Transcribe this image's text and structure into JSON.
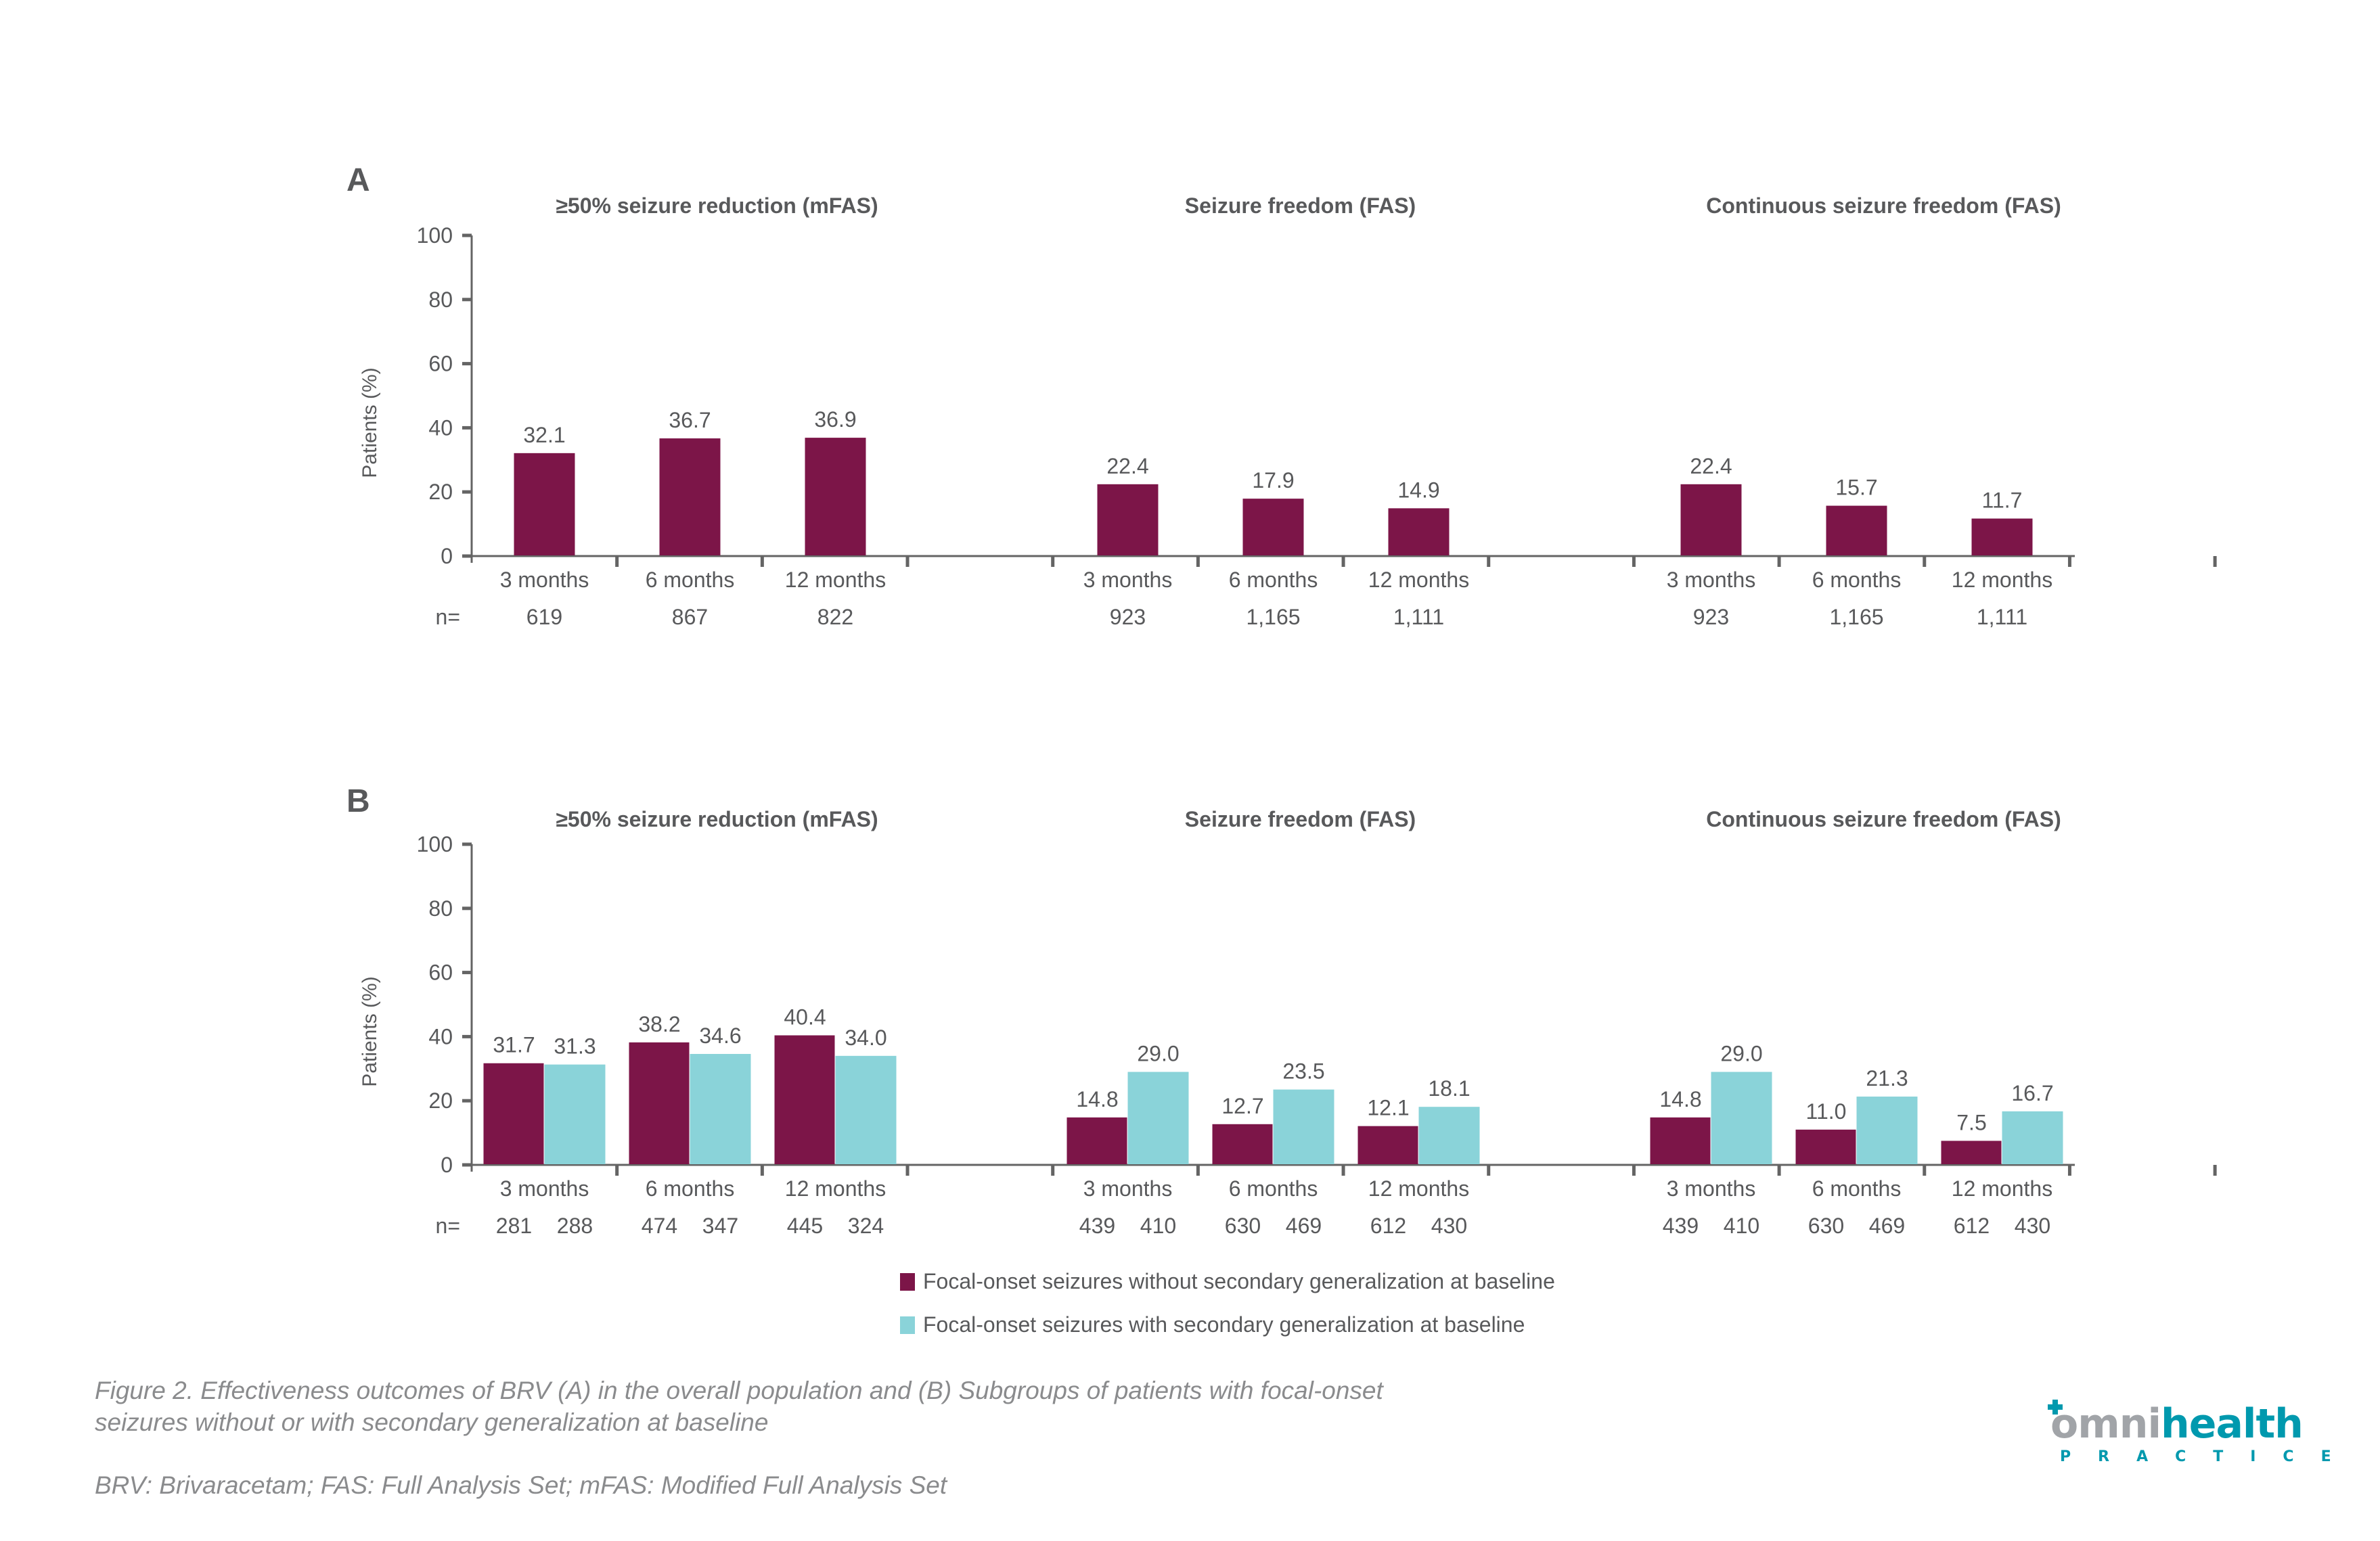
{
  "colors": {
    "without_secondary": "#7c1548",
    "with_secondary": "#8ad3d9",
    "axis": "#646464",
    "text": "#58595b",
    "caption": "#8a8b8d",
    "logo_gray": "#a1a4a8",
    "logo_teal": "#0099ae"
  },
  "chart_data": [
    {
      "panel": "A",
      "type": "bar",
      "ylabel": "Patients (%)",
      "ylim": [
        0,
        100
      ],
      "yticks": [
        0,
        20,
        40,
        60,
        80,
        100
      ],
      "n_label": "n=",
      "grid": false,
      "groups": [
        {
          "title": "≥50% seizure reduction (mFAS)",
          "categories": [
            "3 months",
            "6 months",
            "12 months"
          ],
          "series": [
            {
              "name": "Overall population",
              "values": [
                32.1,
                36.7,
                36.9
              ],
              "labels": [
                "32.1",
                "36.7",
                "36.9"
              ],
              "n": [
                "619",
                "867",
                "822"
              ]
            }
          ]
        },
        {
          "title": "Seizure freedom (FAS)",
          "categories": [
            "3 months",
            "6 months",
            "12 months"
          ],
          "series": [
            {
              "name": "Overall population",
              "values": [
                22.4,
                17.9,
                14.9
              ],
              "labels": [
                "22.4",
                "17.9",
                "14.9"
              ],
              "n": [
                "923",
                "1,165",
                "1,111"
              ]
            }
          ]
        },
        {
          "title": "Continuous seizure freedom (FAS)",
          "categories": [
            "3 months",
            "6 months",
            "12 months"
          ],
          "series": [
            {
              "name": "Overall population",
              "values": [
                22.4,
                15.7,
                11.7
              ],
              "labels": [
                "22.4",
                "15.7",
                "11.7"
              ],
              "n": [
                "923",
                "1,165",
                "1,111"
              ]
            }
          ]
        }
      ]
    },
    {
      "panel": "B",
      "type": "bar",
      "ylabel": "Patients (%)",
      "ylim": [
        0,
        100
      ],
      "yticks": [
        0,
        20,
        40,
        60,
        80,
        100
      ],
      "n_label": "n=",
      "grid": false,
      "legend_placement": "bottom-center",
      "groups": [
        {
          "title": "≥50% seizure reduction (mFAS)",
          "categories": [
            "3 months",
            "6 months",
            "12 months"
          ],
          "series": [
            {
              "name": "Focal-onset seizures without secondary generalization at baseline",
              "values": [
                31.7,
                38.2,
                40.4
              ],
              "labels": [
                "31.7",
                "38.2",
                "40.4"
              ],
              "n": [
                "281",
                "474",
                "445"
              ]
            },
            {
              "name": "Focal-onset seizures with secondary generalization at baseline",
              "values": [
                31.3,
                34.6,
                34.0
              ],
              "labels": [
                "31.3",
                "34.6",
                "34.0"
              ],
              "n": [
                "288",
                "347",
                "324"
              ]
            }
          ]
        },
        {
          "title": "Seizure freedom (FAS)",
          "categories": [
            "3 months",
            "6 months",
            "12 months"
          ],
          "series": [
            {
              "name": "Focal-onset seizures without secondary generalization at baseline",
              "values": [
                14.8,
                12.7,
                12.1
              ],
              "labels": [
                "14.8",
                "12.7",
                "12.1"
              ],
              "n": [
                "439",
                "630",
                "612"
              ]
            },
            {
              "name": "Focal-onset seizures with secondary generalization at baseline",
              "values": [
                29.0,
                23.5,
                18.1
              ],
              "labels": [
                "29.0",
                "23.5",
                "18.1"
              ],
              "n": [
                "410",
                "469",
                "430"
              ]
            }
          ]
        },
        {
          "title": "Continuous seizure freedom (FAS)",
          "categories": [
            "3 months",
            "6 months",
            "12 months"
          ],
          "series": [
            {
              "name": "Focal-onset seizures without secondary generalization at baseline",
              "values": [
                14.8,
                11.0,
                7.5
              ],
              "labels": [
                "14.8",
                "11.0",
                "7.5"
              ],
              "n": [
                "439",
                "630",
                "612"
              ]
            },
            {
              "name": "Focal-onset seizures with secondary generalization at baseline",
              "values": [
                29.0,
                21.3,
                16.7
              ],
              "labels": [
                "29.0",
                "21.3",
                "16.7"
              ],
              "n": [
                "410",
                "469",
                "430"
              ]
            }
          ]
        }
      ]
    }
  ],
  "legend": [
    {
      "label": "Focal-onset seizures without secondary generalization at baseline",
      "color_key": "without_secondary"
    },
    {
      "label": "Focal-onset seizures with secondary generalization at baseline",
      "color_key": "with_secondary"
    }
  ],
  "caption": {
    "figure_line1": "Figure 2. Effectiveness outcomes of BRV (A) in the overall population and (B) Subgroups of patients with focal-onset",
    "figure_line2": "seizures without or with secondary generalization at baseline",
    "abbreviations": "BRV: Brivaracetam; FAS: Full Analysis Set; mFAS: Modified Full Analysis Set"
  },
  "logo": {
    "word_gray": "omni",
    "word_teal": "health",
    "sub": "PRACTICE"
  }
}
